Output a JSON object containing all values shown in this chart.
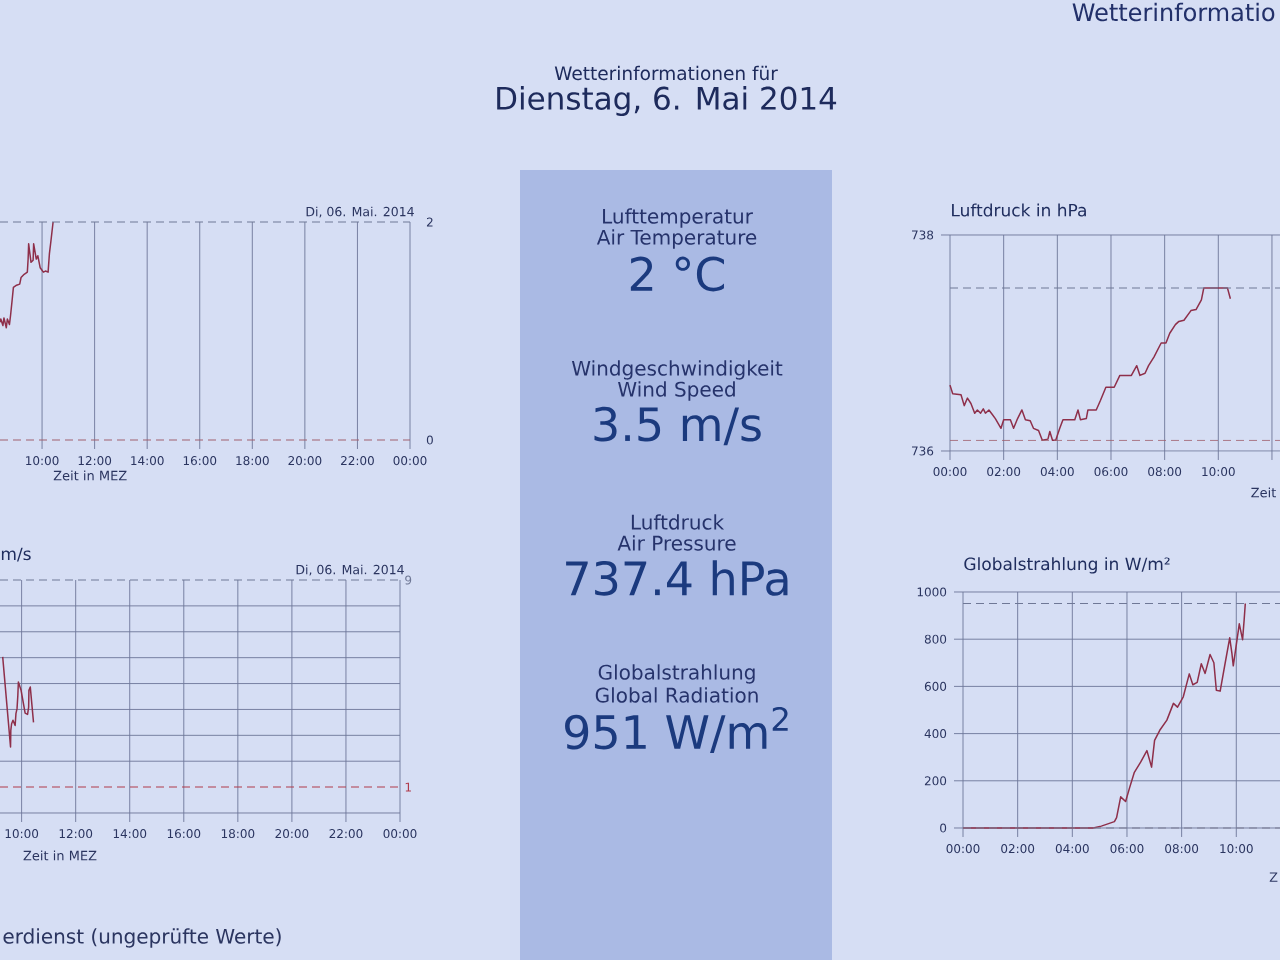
{
  "chart_data": [
    {
      "type": "other",
      "title": "Wetterinformationen für",
      "subtitle": "Dienstag, 6. Mai 2014",
      "annotations": [
        "Lufttemperatur",
        "Air Temperature",
        "2 °C",
        "Windgeschwindigkeit",
        "Wind Speed",
        "3.5 m/s",
        "Luftdruck",
        "Air Pressure",
        "737.4 hPa",
        "Globalstrahlung",
        "Global Radiation",
        "951 W/m$^{2}$",
        "erdienst (ungeprüfte Werte)",
        "Wetterinformatio"
      ]
    },
    {
      "type": "line",
      "subtitle": "Di, 06. Mai. 2014",
      "xlabel": "Zeit in MEZ",
      "color": "#8e2f4a",
      "x": [
        8.4,
        8.43,
        8.51,
        8.55,
        8.64,
        8.68,
        8.76,
        8.8,
        8.86,
        8.91,
        9.03,
        9.15,
        9.2,
        9.32,
        9.44,
        9.47,
        9.49,
        9.58,
        9.66,
        9.68,
        9.78,
        9.84,
        9.93,
        10.05,
        10.13,
        10.23,
        10.28,
        10.34,
        10.42
      ],
      "values": [
        1.08,
        1.11,
        1.05,
        1.12,
        1.03,
        1.11,
        1.06,
        1.14,
        1.28,
        1.4,
        1.42,
        1.43,
        1.49,
        1.52,
        1.54,
        1.66,
        1.8,
        1.63,
        1.65,
        1.8,
        1.66,
        1.69,
        1.58,
        1.54,
        1.55,
        1.54,
        1.71,
        1.83,
        2.0
      ],
      "xlim": [
        8.4,
        24
      ],
      "ylim": [
        0,
        2
      ],
      "xticks": [
        {
          "value": 10,
          "label": "10:00"
        },
        {
          "value": 12,
          "label": "12:00"
        },
        {
          "value": 14,
          "label": "14:00"
        },
        {
          "value": 16,
          "label": "16:00"
        },
        {
          "value": 18,
          "label": "18:00"
        },
        {
          "value": 20,
          "label": "20:00"
        },
        {
          "value": 22,
          "label": "22:00"
        },
        {
          "value": 24,
          "label": "00:00"
        }
      ],
      "yticks": [
        0,
        2
      ],
      "grid": "x",
      "ref_lines": [
        {
          "axis": "y",
          "value": 2,
          "color": "#6f7896",
          "line_style": "dashed"
        },
        {
          "axis": "y",
          "value": 0,
          "color": "#a0606e",
          "line_style": "dashed"
        }
      ]
    },
    {
      "type": "line",
      "title": "Luftdruck in hPa",
      "xlabel": "Zeit",
      "color": "#8e2f4a",
      "x": [
        0,
        0.1,
        0.41,
        0.53,
        0.65,
        0.78,
        0.92,
        1.02,
        1.14,
        1.24,
        1.32,
        1.45,
        1.57,
        1.69,
        1.9,
        2.0,
        2.25,
        2.37,
        2.5,
        2.68,
        2.81,
        2.99,
        3.11,
        3.3,
        3.44,
        3.65,
        3.72,
        3.82,
        3.94,
        4.09,
        4.21,
        4.65,
        4.77,
        4.86,
        5.08,
        5.14,
        5.45,
        5.61,
        5.81,
        6.12,
        6.33,
        6.76,
        6.96,
        7.08,
        7.27,
        7.4,
        7.6,
        7.87,
        8.05,
        8.19,
        8.4,
        8.53,
        8.72,
        8.98,
        9.17,
        9.37,
        9.46,
        10.15,
        10.34,
        10.45
      ],
      "values": [
        736.61,
        736.53,
        736.52,
        736.42,
        736.49,
        736.44,
        736.35,
        736.38,
        736.35,
        736.39,
        736.35,
        736.38,
        736.34,
        736.3,
        736.21,
        736.29,
        736.29,
        736.21,
        736.29,
        736.38,
        736.29,
        736.28,
        736.21,
        736.19,
        736.1,
        736.11,
        736.18,
        736.1,
        736.1,
        736.21,
        736.29,
        736.29,
        736.38,
        736.29,
        736.3,
        736.38,
        736.38,
        736.47,
        736.59,
        736.59,
        736.7,
        736.7,
        736.79,
        736.7,
        736.72,
        736.79,
        736.87,
        737.0,
        737.0,
        737.09,
        737.17,
        737.2,
        737.21,
        737.3,
        737.31,
        737.4,
        737.51,
        737.51,
        737.51,
        737.41
      ],
      "xlim": [
        0,
        12.3
      ],
      "ylim": [
        736,
        738
      ],
      "xticks": [
        {
          "value": 0,
          "label": "00:00"
        },
        {
          "value": 2,
          "label": "02:00"
        },
        {
          "value": 4,
          "label": "04:00"
        },
        {
          "value": 6,
          "label": "06:00"
        },
        {
          "value": 8,
          "label": "08:00"
        },
        {
          "value": 10,
          "label": "10:00"
        },
        {
          "value": 12,
          "label": null
        }
      ],
      "yticks": [
        736,
        738
      ],
      "grid": true,
      "ref_lines": [
        {
          "axis": "y",
          "value": 737.51,
          "color": "#6f7896",
          "line_style": "dashed"
        },
        {
          "axis": "y",
          "value": 736.1,
          "color": "#a0606e",
          "line_style": "dashed"
        }
      ]
    },
    {
      "type": "line",
      "title": "m/s",
      "subtitle": "Di, 06. Mai. 2014",
      "xlabel": "Zeit in MEZ",
      "color": "#8e2f4a",
      "x": [
        9.3,
        9.59,
        9.6,
        9.63,
        9.68,
        9.76,
        9.79,
        9.83,
        9.86,
        9.88,
        9.98,
        10.13,
        10.22,
        10.26,
        10.27,
        10.32,
        10.44
      ],
      "values": [
        6.03,
        2.55,
        3.19,
        3.45,
        3.58,
        3.38,
        3.84,
        4.03,
        4.54,
        5.06,
        4.74,
        3.86,
        3.81,
        4.09,
        4.74,
        4.87,
        3.5
      ],
      "xlim": [
        9.2,
        24
      ],
      "ylim": [
        0,
        9
      ],
      "xticks": [
        {
          "value": 10,
          "label": "10:00"
        },
        {
          "value": 12,
          "label": "12:00"
        },
        {
          "value": 14,
          "label": "14:00"
        },
        {
          "value": 16,
          "label": "16:00"
        },
        {
          "value": 18,
          "label": "18:00"
        },
        {
          "value": 20,
          "label": "20:00"
        },
        {
          "value": 22,
          "label": "22:00"
        },
        {
          "value": 24,
          "label": "00:00"
        }
      ],
      "yticks": [
        {
          "value": 0,
          "label": null
        },
        {
          "value": 2,
          "label": null
        },
        {
          "value": 3,
          "label": null
        },
        {
          "value": 4,
          "label": null
        },
        {
          "value": 5,
          "label": null
        },
        {
          "value": 6,
          "label": null
        },
        {
          "value": 7,
          "label": null
        },
        {
          "value": 8,
          "label": null
        }
      ],
      "tick_labels": "x",
      "grid": true,
      "ref_lines": [
        {
          "axis": "y",
          "value": 9,
          "label": "9",
          "color": "#6f7896",
          "line_style": "dashed"
        },
        {
          "axis": "y",
          "value": 1,
          "label": "1",
          "color": "#b03a4a",
          "line_style": "dashed"
        }
      ]
    },
    {
      "type": "line",
      "title": "Globalstrahlung in W/m²",
      "xlabel": "Z",
      "color": "#8e2f4a",
      "x": [
        0,
        4.76,
        5.06,
        5.54,
        5.62,
        5.77,
        5.95,
        6.1,
        6.27,
        6.5,
        6.73,
        6.9,
        7.01,
        7.2,
        7.46,
        7.7,
        7.85,
        8.06,
        8.28,
        8.41,
        8.57,
        8.72,
        8.86,
        9.04,
        9.18,
        9.27,
        9.41,
        9.59,
        9.76,
        9.84,
        9.89,
        10.11,
        10.23,
        10.29,
        10.33
      ],
      "values": [
        0,
        0,
        8,
        27,
        44,
        132,
        112,
        172,
        236,
        279,
        328,
        258,
        371,
        414,
        457,
        528,
        512,
        556,
        653,
        607,
        617,
        696,
        655,
        735,
        700,
        584,
        580,
        697,
        806,
        740,
        687,
        865,
        798,
        885,
        951
      ],
      "xlim": [
        0,
        11.6
      ],
      "ylim": [
        0,
        1000
      ],
      "xticks": [
        {
          "value": 0,
          "label": "00:00"
        },
        {
          "value": 2,
          "label": "02:00"
        },
        {
          "value": 4,
          "label": "04:00"
        },
        {
          "value": 6,
          "label": "06:00"
        },
        {
          "value": 8,
          "label": "08:00"
        },
        {
          "value": 10,
          "label": "10:00"
        }
      ],
      "yticks": [
        0,
        200,
        400,
        600,
        800,
        1000
      ],
      "grid": true,
      "ref_lines": [
        {
          "axis": "y",
          "value": 951,
          "color": "#6f7896",
          "line_style": "dashed"
        },
        {
          "axis": "y",
          "value": 0,
          "color": "#7d7f96",
          "line_style": "dashed"
        }
      ]
    }
  ]
}
